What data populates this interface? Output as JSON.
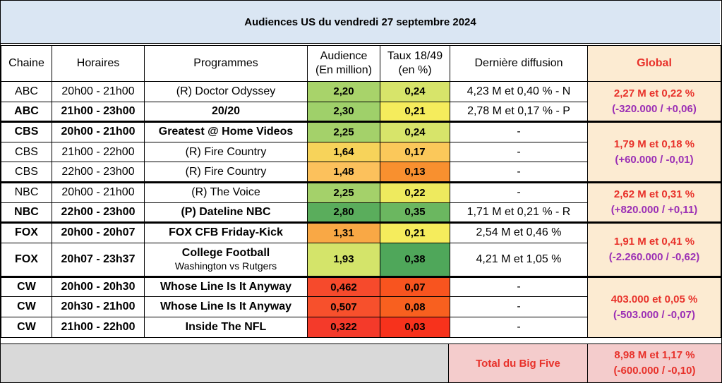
{
  "title": "Audiences US du vendredi 27 septembre 2024",
  "headers": {
    "chaine": "Chaine",
    "horaires": "Horaires",
    "programmes": "Programmes",
    "audience_l1": "Audience",
    "audience_l2": "(En million)",
    "taux_l1": "Taux 18/49",
    "taux_l2": "(en %)",
    "derniere": "Dernière diffusion",
    "global": "Global"
  },
  "rows": [
    {
      "chaine": "ABC",
      "horaires": "20h00 - 21h00",
      "programme": "(R) Doctor Odyssey",
      "audience": "2,20",
      "taux": "0,24",
      "derniere": "4,23 M et 0,40 % - N",
      "aud_color": "#a8d36a",
      "taux_color": "#d7e46a"
    },
    {
      "chaine": "ABC",
      "horaires": "21h00 - 23h00",
      "programme": "20/20",
      "audience": "2,30",
      "taux": "0,21",
      "derniere": "2,78 M et 0,17 % - P",
      "aud_color": "#9fd06a",
      "taux_color": "#f5ec5c"
    },
    {
      "chaine": "CBS",
      "horaires": "20h00 - 21h00",
      "programme": "Greatest @ Home Videos",
      "audience": "2,25",
      "taux": "0,24",
      "derniere": "-",
      "aud_color": "#a4d16a",
      "taux_color": "#d7e46a"
    },
    {
      "chaine": "CBS",
      "horaires": "21h00 - 22h00",
      "programme": "(R) Fire Country",
      "audience": "1,64",
      "taux": "0,17",
      "derniere": "-",
      "aud_color": "#f7d35a",
      "taux_color": "#fbc85a"
    },
    {
      "chaine": "CBS",
      "horaires": "22h00 - 23h00",
      "programme": "(R) Fire Country",
      "audience": "1,48",
      "taux": "0,13",
      "derniere": "-",
      "aud_color": "#fcc15c",
      "taux_color": "#f8902f"
    },
    {
      "chaine": "NBC",
      "horaires": "20h00 - 21h00",
      "programme": "(R) The Voice",
      "audience": "2,25",
      "taux": "0,22",
      "derniere": "-",
      "aud_color": "#a4d16a",
      "taux_color": "#eeea5e"
    },
    {
      "chaine": "NBC",
      "horaires": "22h00 - 23h00",
      "programme": "(P) Dateline NBC",
      "audience": "2,80",
      "taux": "0,35",
      "derniere": "1,71 M et 0,21 % - R",
      "aud_color": "#5aad5c",
      "taux_color": "#6bb760"
    },
    {
      "chaine": "FOX",
      "horaires": "20h00 - 20h07",
      "programme": "FOX CFB Friday-Kick",
      "audience": "1,31",
      "taux": "0,21",
      "derniere": "2,54 M et 0,46 %",
      "aud_color": "#f9a845",
      "taux_color": "#f5ec5c"
    },
    {
      "chaine": "FOX",
      "horaires": "20h07 - 23h37",
      "programme": "College Football",
      "programme_sub": "Washington vs Rutgers",
      "audience": "1,93",
      "taux": "0,38",
      "derniere": "4,21 M et 1,05 %",
      "aud_color": "#d4e46a",
      "taux_color": "#4fa75a"
    },
    {
      "chaine": "CW",
      "horaires": "20h00 - 20h30",
      "programme": "Whose Line Is It Anyway",
      "audience": "0,462",
      "taux": "0,07",
      "derniere": "-",
      "aud_color": "#f64a2c",
      "taux_color": "#f8541f"
    },
    {
      "chaine": "CW",
      "horaires": "20h30 - 21h00",
      "programme": "Whose Line Is It Anyway",
      "audience": "0,507",
      "taux": "0,08",
      "derniere": "-",
      "aud_color": "#f7502c",
      "taux_color": "#f8601f"
    },
    {
      "chaine": "CW",
      "horaires": "21h00 - 22h00",
      "programme": "Inside The NFL",
      "audience": "0,322",
      "taux": "0,03",
      "derniere": "-",
      "aud_color": "#f43a2a",
      "taux_color": "#f7321c"
    }
  ],
  "globals": [
    {
      "line1": "2,27 M et 0,22 %",
      "line2": "(-320.000 / +0,06)"
    },
    {
      "line1": "1,79 M et 0,18 %",
      "line2": "(+60.000 / -0,01)"
    },
    {
      "line1": "2,62 M et 0,31 %",
      "line2": "(+820.000 / +0,11)"
    },
    {
      "line1": "1,91 M et 0,41 %",
      "line2": "(-2.260.000 / -0,62)"
    },
    {
      "line1": "403.000 et 0,05 %",
      "line2": "(-503.000 / -0,07)"
    }
  ],
  "total": {
    "label": "Total du Big Five",
    "line1": "8,98 M et 1,17 %",
    "line2": "(-600.000 / -0,10)"
  }
}
